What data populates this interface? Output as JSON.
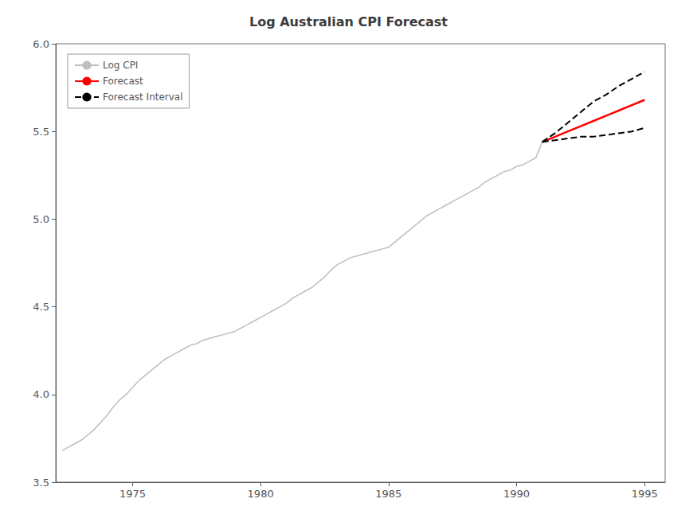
{
  "chart_data": {
    "type": "line",
    "title": "Log Australian CPI Forecast",
    "xlim": [
      1972.0,
      1995.8
    ],
    "xticks": [
      1975,
      1980,
      1985,
      1990,
      1995
    ],
    "ylim": [
      3.5,
      6.0
    ],
    "yticks": [
      3.5,
      {
        "value": 4.0,
        "label": "4.0"
      },
      4.5,
      {
        "value": 5.0,
        "label": "5.0"
      },
      5.5,
      {
        "value": 6.0,
        "label": "6.0"
      }
    ],
    "grid": false,
    "legend": "upper left",
    "series": [
      {
        "name": "Log CPI",
        "color": "#bebebe",
        "line_style": "solid",
        "x": [
          1972.25,
          1972.5,
          1972.75,
          1973.0,
          1973.25,
          1973.5,
          1973.75,
          1974.0,
          1974.25,
          1974.5,
          1974.75,
          1975.0,
          1975.25,
          1975.5,
          1975.75,
          1976.0,
          1976.25,
          1976.5,
          1976.75,
          1977.0,
          1977.25,
          1977.5,
          1977.75,
          1978.0,
          1978.25,
          1978.5,
          1978.75,
          1979.0,
          1979.25,
          1979.5,
          1979.75,
          1980.0,
          1980.25,
          1980.5,
          1980.75,
          1981.0,
          1981.25,
          1981.5,
          1981.75,
          1982.0,
          1982.25,
          1982.5,
          1982.75,
          1983.0,
          1983.25,
          1983.5,
          1983.75,
          1984.0,
          1984.25,
          1984.5,
          1984.75,
          1985.0,
          1985.25,
          1985.5,
          1985.75,
          1986.0,
          1986.25,
          1986.5,
          1986.75,
          1987.0,
          1987.25,
          1987.5,
          1987.75,
          1988.0,
          1988.25,
          1988.5,
          1988.75,
          1989.0,
          1989.25,
          1989.5,
          1989.75,
          1990.0,
          1990.25,
          1990.5,
          1990.75,
          1991.0
        ],
        "values": [
          3.68,
          3.7,
          3.72,
          3.74,
          3.77,
          3.8,
          3.84,
          3.88,
          3.93,
          3.97,
          4.0,
          4.04,
          4.08,
          4.11,
          4.14,
          4.17,
          4.2,
          4.22,
          4.24,
          4.26,
          4.28,
          4.29,
          4.31,
          4.32,
          4.33,
          4.34,
          4.35,
          4.36,
          4.38,
          4.4,
          4.42,
          4.44,
          4.46,
          4.48,
          4.5,
          4.52,
          4.55,
          4.57,
          4.59,
          4.61,
          4.64,
          4.67,
          4.71,
          4.74,
          4.76,
          4.78,
          4.79,
          4.8,
          4.81,
          4.82,
          4.83,
          4.84,
          4.87,
          4.9,
          4.93,
          4.96,
          4.99,
          5.02,
          5.04,
          5.06,
          5.08,
          5.1,
          5.12,
          5.14,
          5.16,
          5.18,
          5.21,
          5.23,
          5.25,
          5.27,
          5.28,
          5.3,
          5.31,
          5.33,
          5.35,
          5.44
        ]
      },
      {
        "name": "Forecast",
        "color": "#ff0000",
        "line_style": "solid",
        "x": [
          1991.0,
          1991.5,
          1992.0,
          1992.5,
          1993.0,
          1993.5,
          1994.0,
          1994.5,
          1995.0
        ],
        "values": [
          5.44,
          5.47,
          5.5,
          5.53,
          5.56,
          5.59,
          5.62,
          5.65,
          5.68
        ]
      },
      {
        "name": "Forecast Interval",
        "color": "#000000",
        "line_style": "dashed",
        "x": [
          1991.0,
          1991.5,
          1992.0,
          1992.5,
          1993.0,
          1993.5,
          1994.0,
          1994.5,
          1995.0
        ],
        "values": [
          5.44,
          5.49,
          5.55,
          5.61,
          5.67,
          5.71,
          5.76,
          5.8,
          5.84
        ]
      },
      {
        "color": "#000000",
        "line_style": "dashed",
        "x": [
          1991.0,
          1991.5,
          1992.0,
          1992.5,
          1993.0,
          1993.5,
          1994.0,
          1994.5,
          1995.0
        ],
        "values": [
          5.44,
          5.45,
          5.46,
          5.47,
          5.47,
          5.48,
          5.49,
          5.5,
          5.52
        ]
      }
    ]
  }
}
